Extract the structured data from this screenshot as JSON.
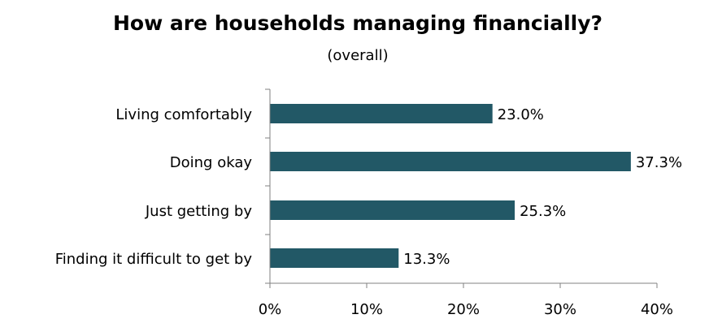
{
  "chart_data": {
    "type": "bar",
    "orientation": "horizontal",
    "title": "How are households managing financially?",
    "subtitle": "(overall)",
    "categories": [
      "Living comfortably",
      "Doing okay",
      "Just getting by",
      "Finding it difficult to get by"
    ],
    "values": [
      23.0,
      37.3,
      25.3,
      13.3
    ],
    "data_labels": [
      "23.0%",
      "37.3%",
      "25.3%",
      "13.3%"
    ],
    "xlim": [
      0,
      40
    ],
    "xticks": [
      0,
      10,
      20,
      30,
      40
    ],
    "xtick_labels": [
      "0%",
      "10%",
      "20%",
      "30%",
      "40%"
    ],
    "xlabel": "",
    "ylabel": "",
    "grid": false,
    "legend": "none",
    "bar_color": "#225866",
    "axis_color": "#808080"
  }
}
